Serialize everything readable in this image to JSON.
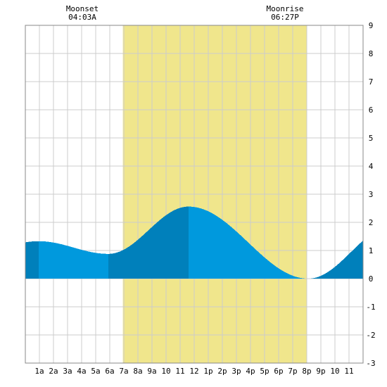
{
  "chart_data": {
    "type": "area",
    "title": "",
    "xlabel": "",
    "ylabel": "",
    "x_ticks": [
      "1a",
      "2a",
      "3a",
      "4a",
      "5a",
      "6a",
      "7a",
      "8a",
      "9a",
      "10",
      "11",
      "12",
      "1p",
      "2p",
      "3p",
      "4p",
      "5p",
      "6p",
      "7p",
      "8p",
      "9p",
      "10",
      "11"
    ],
    "y_ticks": [
      "9",
      "8",
      "7",
      "6",
      "5",
      "4",
      "3",
      "2",
      "1",
      "0",
      "-1",
      "-2",
      "-3"
    ],
    "xlim": [
      0,
      24
    ],
    "ylim": [
      -3,
      9
    ],
    "grid": true,
    "daylight": {
      "start_hour": 6.93,
      "end_hour": 20.0,
      "color": "#f0e68c"
    },
    "moonset": {
      "label": "Moonset",
      "time": "04:03A",
      "hour": 4.05
    },
    "moonrise": {
      "label": "Moonrise",
      "time": "06:27P",
      "hour": 18.45
    },
    "extrema": [
      {
        "hour": 0.95,
        "height": 1.33
      },
      {
        "hour": 5.9,
        "height": 0.88
      },
      {
        "hour": 11.6,
        "height": 2.56
      },
      {
        "hour": 20.1,
        "height": 0.0
      },
      {
        "hour": 26.2,
        "height": 1.9
      }
    ],
    "band_colors": {
      "light": "#0099dd",
      "dark": "#0080bb"
    },
    "bands": [
      {
        "from": 0,
        "to": 0.95,
        "shade": "dark"
      },
      {
        "from": 0.95,
        "to": 5.9,
        "shade": "light"
      },
      {
        "from": 5.9,
        "to": 11.6,
        "shade": "dark"
      },
      {
        "from": 11.6,
        "to": 20.1,
        "shade": "light"
      },
      {
        "from": 20.1,
        "to": 24,
        "shade": "dark"
      }
    ]
  }
}
